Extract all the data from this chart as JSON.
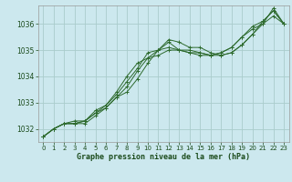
{
  "title": "Graphe pression niveau de la mer (hPa)",
  "background_color": "#cce8ee",
  "grid_color": "#aacccc",
  "line_color": "#2d6a2d",
  "marker_color": "#2d6a2d",
  "text_color": "#1a4a1a",
  "xlim": [
    -0.5,
    23.5
  ],
  "ylim": [
    1031.5,
    1036.7
  ],
  "yticks": [
    1032,
    1033,
    1034,
    1035,
    1036
  ],
  "xticks": [
    0,
    1,
    2,
    3,
    4,
    5,
    6,
    7,
    8,
    9,
    10,
    11,
    12,
    13,
    14,
    15,
    16,
    17,
    18,
    19,
    20,
    21,
    22,
    23
  ],
  "series": [
    [
      1031.7,
      1032.0,
      1032.2,
      1032.2,
      1032.2,
      1032.5,
      1032.8,
      1033.2,
      1033.6,
      1034.2,
      1034.7,
      1035.0,
      1035.4,
      1035.3,
      1035.1,
      1035.1,
      1034.9,
      1034.8,
      1034.9,
      1035.2,
      1035.6,
      1036.1,
      1036.5,
      1036.0
    ],
    [
      1031.7,
      1032.0,
      1032.2,
      1032.2,
      1032.3,
      1032.6,
      1032.8,
      1033.2,
      1033.4,
      1033.9,
      1034.5,
      1035.0,
      1035.3,
      1035.0,
      1034.9,
      1034.9,
      1034.8,
      1034.8,
      1034.9,
      1035.2,
      1035.6,
      1036.0,
      1036.3,
      1036.0
    ],
    [
      1031.7,
      1032.0,
      1032.2,
      1032.2,
      1032.3,
      1032.6,
      1032.9,
      1033.3,
      1033.8,
      1034.3,
      1034.9,
      1035.0,
      1035.1,
      1035.0,
      1034.9,
      1034.8,
      1034.8,
      1034.9,
      1035.1,
      1035.5,
      1035.9,
      1036.1,
      1036.5,
      1036.0
    ],
    [
      1031.7,
      1032.0,
      1032.2,
      1032.3,
      1032.3,
      1032.7,
      1032.9,
      1033.4,
      1034.0,
      1034.5,
      1034.7,
      1034.8,
      1035.0,
      1035.0,
      1035.0,
      1034.9,
      1034.8,
      1034.9,
      1035.1,
      1035.5,
      1035.8,
      1036.0,
      1036.6,
      1036.0
    ]
  ]
}
